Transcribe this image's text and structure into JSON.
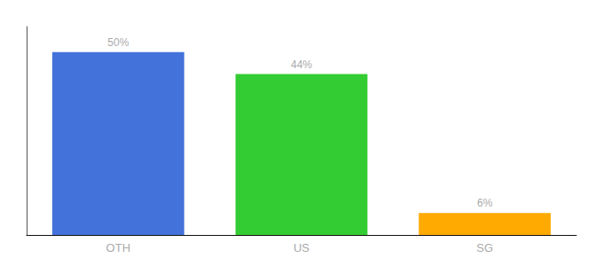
{
  "chart_data": {
    "type": "bar",
    "categories": [
      "OTH",
      "US",
      "SG"
    ],
    "values": [
      50,
      44,
      6
    ],
    "value_labels": [
      "50%",
      "44%",
      "6%"
    ],
    "colors": [
      "#4472db",
      "#33cc33",
      "#ffaa00"
    ],
    "ylim": [
      0,
      57
    ],
    "data_labels": true,
    "tick_labels": "x",
    "grid": false
  }
}
